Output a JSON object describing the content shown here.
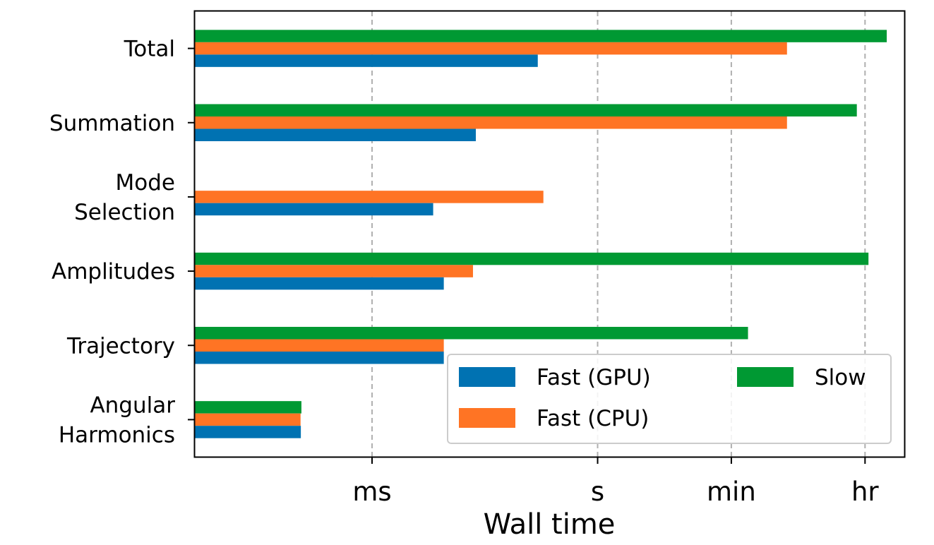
{
  "chart_data": {
    "type": "bar",
    "orientation": "horizontal",
    "title": "",
    "xlabel": "Wall time",
    "ylabel": "",
    "x_scale": "log",
    "x_unit": "seconds",
    "xlim": [
      4.4e-06,
      12000
    ],
    "grid": "x-dashed",
    "legend_position": "bottom-right",
    "x_ticks": [
      {
        "label": "ms",
        "value": 0.001
      },
      {
        "label": "s",
        "value": 1
      },
      {
        "label": "min",
        "value": 60
      },
      {
        "label": "hr",
        "value": 3600
      }
    ],
    "categories": [
      [
        "Total"
      ],
      [
        "Summation"
      ],
      [
        "Mode",
        "Selection"
      ],
      [
        "Amplitudes"
      ],
      [
        "Trajectory"
      ],
      [
        "Angular",
        "Harmonics"
      ]
    ],
    "series": [
      {
        "name": "Fast (GPU)",
        "color": "#0072b2",
        "values": [
          0.16,
          0.024,
          0.0065,
          0.009,
          0.009,
          0.000113
        ]
      },
      {
        "name": "Fast (CPU)",
        "color": "#ff7424",
        "values": [
          330,
          330,
          0.19,
          0.022,
          0.009,
          0.000112
        ]
      },
      {
        "name": "Slow",
        "color": "#009933",
        "values": [
          7000,
          2800,
          null,
          4000,
          100,
          0.000115
        ]
      }
    ]
  }
}
